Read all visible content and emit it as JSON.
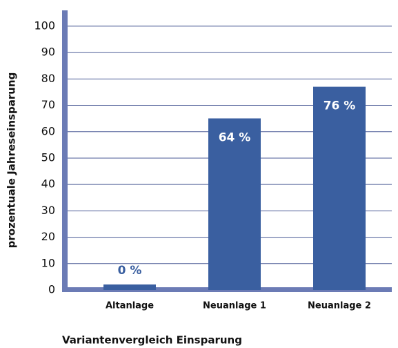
{
  "chart_data": {
    "type": "bar",
    "x_label": "Variantenvergleich Einsparung",
    "y_label": "prozentuale Jahreseinsparung",
    "categories": [
      "Altanlage",
      "Neuanlage 1",
      "Neuanlage 2"
    ],
    "values": [
      0,
      64,
      76
    ],
    "value_labels": [
      "0 %",
      "64 %",
      "76 %"
    ],
    "color": "#3a5fa0",
    "ylim": [
      0,
      106
    ],
    "yticks": [
      0,
      10,
      20,
      30,
      40,
      50,
      60,
      70,
      80,
      90,
      100
    ],
    "grid": true
  }
}
